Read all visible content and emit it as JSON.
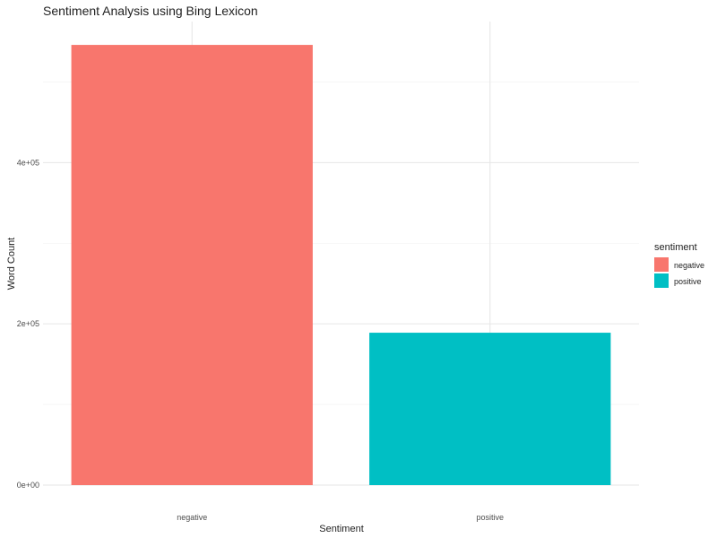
{
  "chart_data": {
    "type": "bar",
    "title": "Sentiment Analysis using Bing Lexicon",
    "xlabel": "Sentiment",
    "ylabel": "Word Count",
    "categories": [
      "negative",
      "positive"
    ],
    "values": [
      546000,
      189000
    ],
    "colors": [
      "#F8766D",
      "#00BFC4"
    ],
    "ylim": [
      0,
      575000
    ],
    "yticks": [
      {
        "value": 0,
        "label": "0e+00"
      },
      {
        "value": 200000,
        "label": "2e+05"
      },
      {
        "value": 400000,
        "label": "4e+05"
      }
    ],
    "minor_yticks": [
      100000,
      300000,
      500000
    ],
    "grid": true,
    "legend": {
      "title": "sentiment",
      "position": "right",
      "items": [
        {
          "label": "negative",
          "color": "#F8766D"
        },
        {
          "label": "positive",
          "color": "#00BFC4"
        }
      ]
    }
  }
}
